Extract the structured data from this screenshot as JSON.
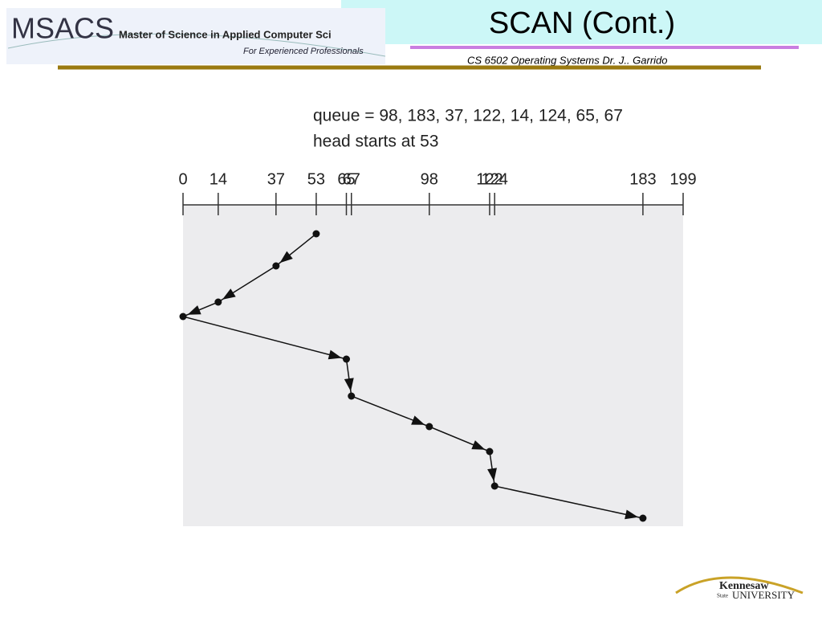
{
  "header": {
    "logo": "MSACS",
    "program": "Master of Science in Applied Computer Sci",
    "tagline": "For Experienced Professionals",
    "title": "SCAN (Cont.)",
    "course": "CS 6502 Operating Systems   Dr. J.. Garrido"
  },
  "diagram": {
    "queue_text": "queue = 98, 183, 37, 122, 14, 124, 65, 67",
    "head_text": "head starts at 53",
    "axis": {
      "xlim": [
        0,
        199
      ],
      "ticks": [
        0,
        14,
        37,
        53,
        65,
        67,
        98,
        122,
        124,
        183,
        199
      ]
    },
    "path": [
      53,
      37,
      14,
      0,
      65,
      67,
      98,
      122,
      124,
      183
    ]
  },
  "footer": {
    "logo_top": "Kennesaw",
    "logo_state": "State",
    "logo_bottom": "UNIVERSITY"
  }
}
